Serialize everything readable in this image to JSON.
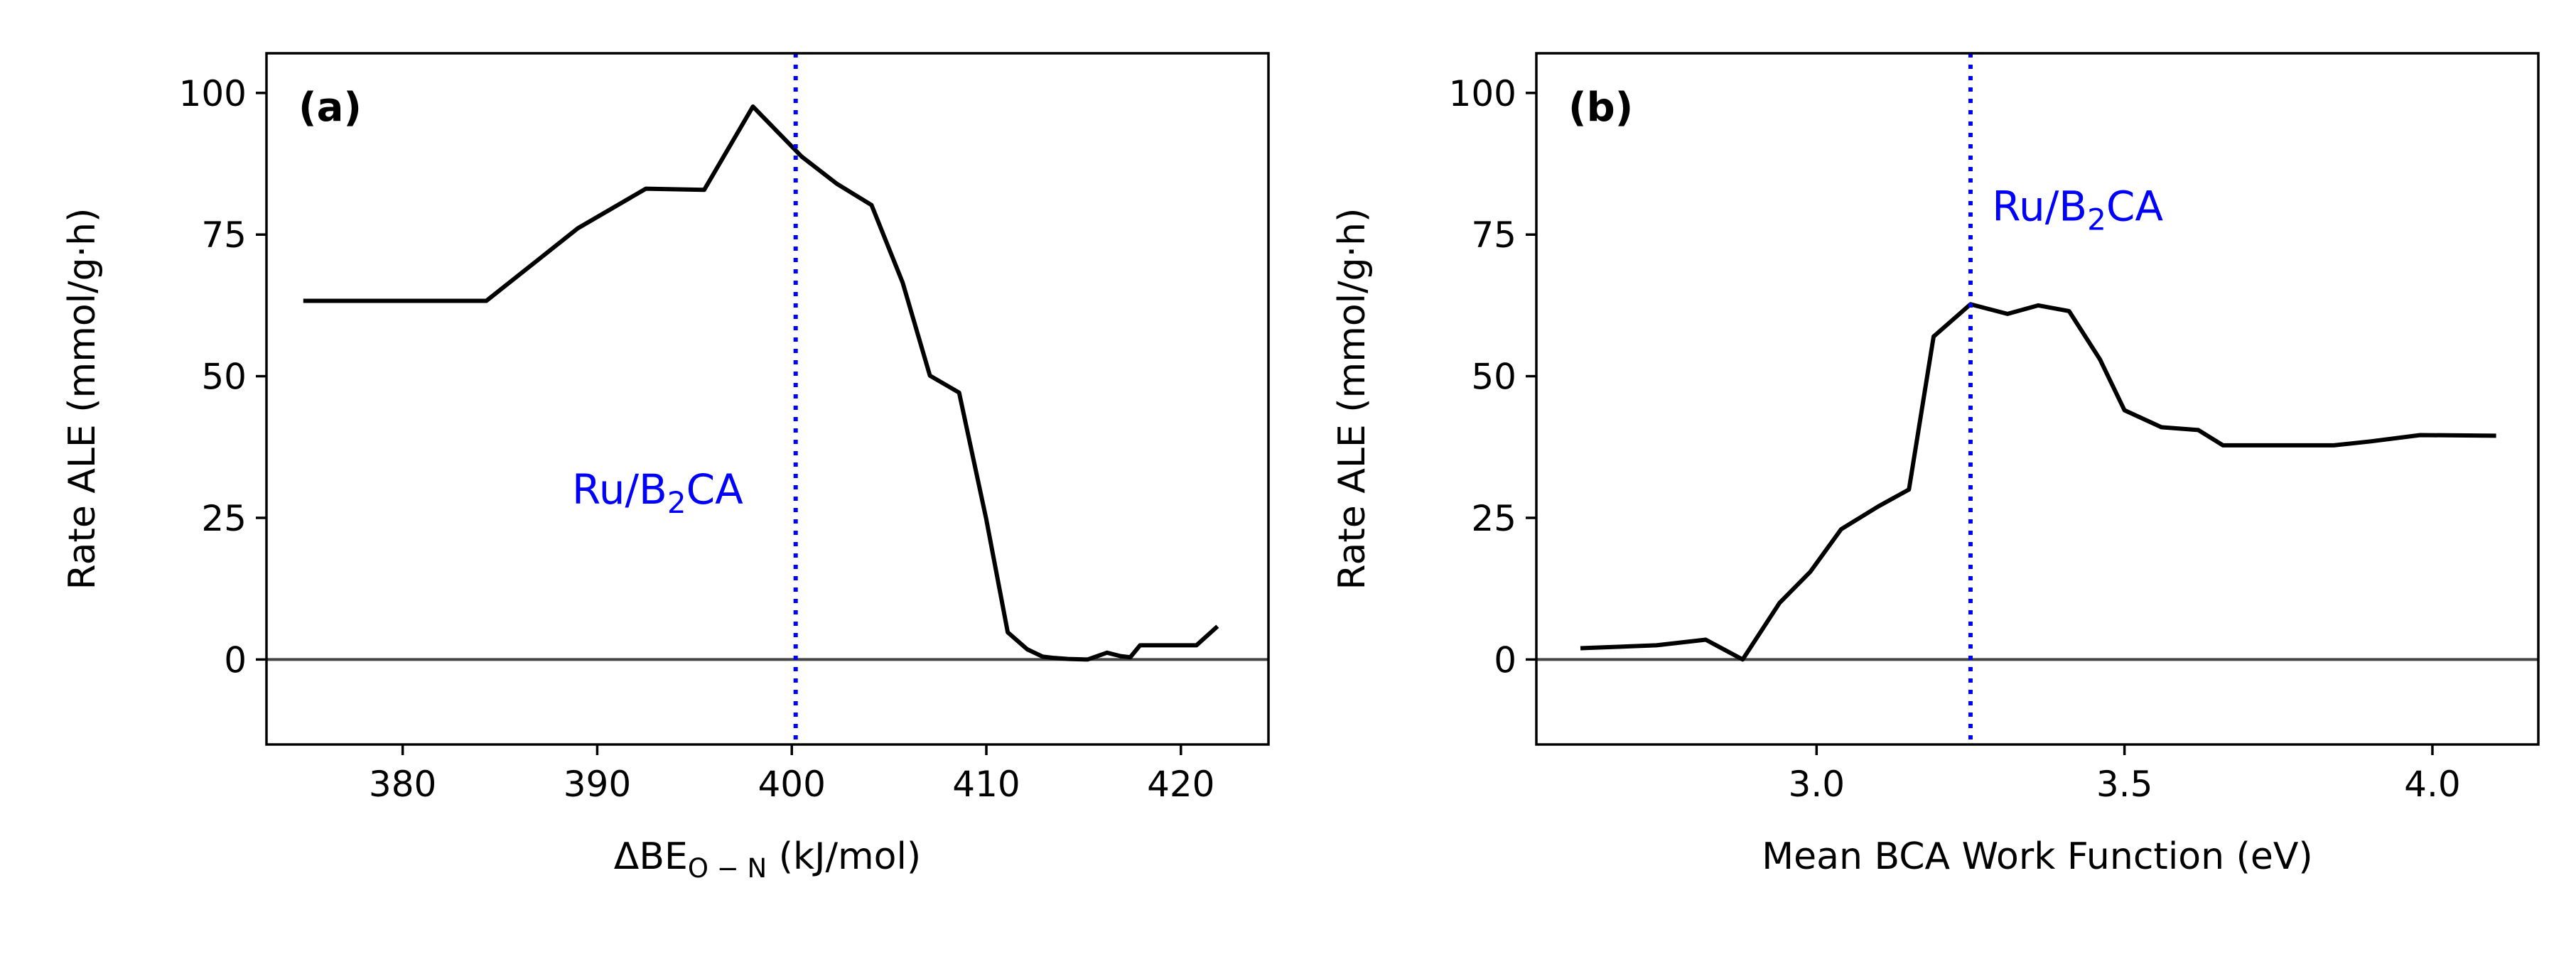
{
  "chart_data": [
    {
      "type": "line",
      "panel_label": "(a)",
      "xlabel_main": "ΔBE",
      "xlabel_sub": "O − N",
      "xlabel_tail": " (kJ/mol)",
      "ylabel": "Rate ALE (mmol/g·h)",
      "xlim": [
        373,
        424.5
      ],
      "ylim": [
        -15,
        107
      ],
      "xticks": [
        380,
        390,
        400,
        410,
        420
      ],
      "xtick_labels": [
        "380",
        "390",
        "400",
        "410",
        "420"
      ],
      "yticks": [
        0,
        25,
        50,
        75,
        100
      ],
      "ytick_labels": [
        "0",
        "25",
        "50",
        "75",
        "100"
      ],
      "grid": false,
      "zero_line": true,
      "series": [
        {
          "color": "#000000",
          "x": [
            375.0,
            384.3,
            389.0,
            392.5,
            395.5,
            398.0,
            400.5,
            402.3,
            404.1,
            405.7,
            407.1,
            408.6,
            410.0,
            411.1,
            412.1,
            412.9,
            413.4,
            414.2,
            415.2,
            416.2,
            416.9,
            417.4,
            417.9,
            419.3,
            420.8,
            421.8
          ],
          "y": [
            63.3,
            63.3,
            76.1,
            83.1,
            82.9,
            97.6,
            88.8,
            84.0,
            80.2,
            66.5,
            50.1,
            47.1,
            24.7,
            4.8,
            1.8,
            0.5,
            0.3,
            0.1,
            0.0,
            1.2,
            0.6,
            0.4,
            2.5,
            2.5,
            2.5,
            5.6
          ]
        }
      ],
      "reference_line": {
        "x": 400.2,
        "color": "#0000ff",
        "style": "dotted"
      },
      "annotation": {
        "text_main": "Ru/B",
        "text_sub": "2",
        "text_tail": "CA",
        "x": 397.5,
        "y": 27.5,
        "color": "#0000ff"
      }
    },
    {
      "type": "line",
      "panel_label": "(b)",
      "xlabel_main": "Mean BCA Work Function (eV)",
      "xlabel_sub": "",
      "xlabel_tail": "",
      "ylabel": "Rate ALE (mmol/g·h)",
      "xlim": [
        2.545,
        4.172
      ],
      "ylim": [
        -15,
        107
      ],
      "xticks": [
        3.0,
        3.5,
        4.0
      ],
      "xtick_labels": [
        "3.0",
        "3.5",
        "4.0"
      ],
      "yticks": [
        0,
        25,
        50,
        75,
        100
      ],
      "ytick_labels": [
        "0",
        "25",
        "50",
        "75",
        "100"
      ],
      "grid": false,
      "zero_line": true,
      "series": [
        {
          "color": "#000000",
          "x": [
            2.62,
            2.74,
            2.82,
            2.88,
            2.94,
            2.99,
            3.04,
            3.1,
            3.15,
            3.19,
            3.25,
            3.31,
            3.36,
            3.41,
            3.46,
            3.5,
            3.56,
            3.62,
            3.66,
            3.75,
            3.84,
            3.9,
            3.98,
            4.1
          ],
          "y": [
            2.0,
            2.5,
            3.5,
            0.0,
            10.0,
            15.5,
            23.0,
            27.0,
            30.0,
            57.0,
            62.7,
            61.0,
            62.5,
            61.5,
            53.0,
            44.0,
            41.0,
            40.5,
            37.8,
            37.8,
            37.8,
            38.5,
            39.6,
            39.5
          ]
        }
      ],
      "reference_line": {
        "x": 3.25,
        "color": "#0000ff",
        "style": "dotted"
      },
      "annotation": {
        "text_main": "Ru/B",
        "text_sub": "2",
        "text_tail": "CA",
        "x": 3.285,
        "y": 77.5,
        "color": "#0000ff"
      }
    }
  ]
}
